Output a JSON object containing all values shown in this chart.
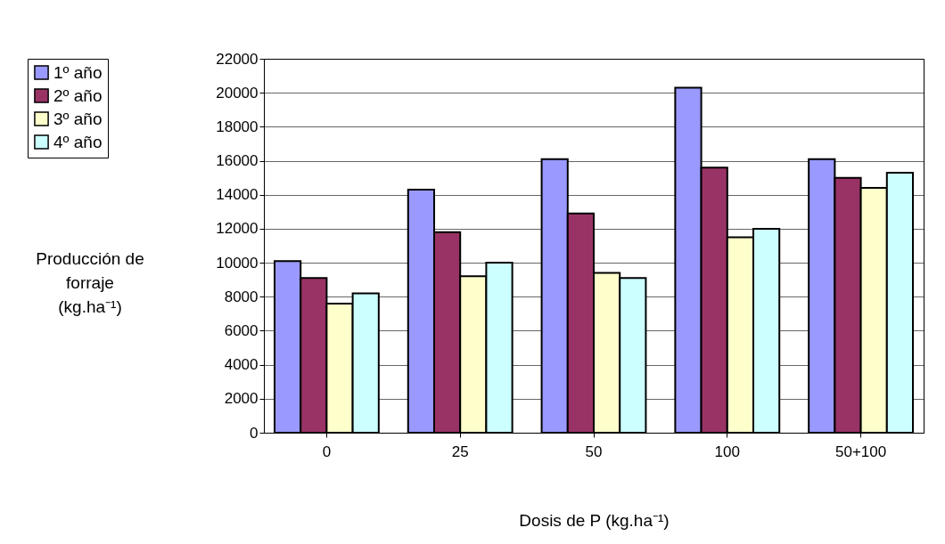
{
  "chart_data": {
    "type": "bar",
    "xlabel": "Dosis de P (kg.ha⁻¹)",
    "ylabel": "Producción de forraje (kg.ha⁻¹)",
    "categories": [
      "0",
      "25",
      "50",
      "100",
      "50+100"
    ],
    "series": [
      {
        "name": "1º año",
        "color": "#9999ff",
        "values": [
          10100,
          14300,
          16100,
          20300,
          16100
        ]
      },
      {
        "name": "2º año",
        "color": "#993366",
        "values": [
          9100,
          11800,
          12900,
          15600,
          15000
        ]
      },
      {
        "name": "3º año",
        "color": "#ffffcc",
        "values": [
          7600,
          9200,
          9400,
          11500,
          14400
        ]
      },
      {
        "name": "4º año",
        "color": "#ccffff",
        "values": [
          8200,
          10000,
          9100,
          12000,
          15300
        ]
      }
    ],
    "ylim": [
      0,
      22000
    ],
    "yticks": [
      0,
      2000,
      4000,
      6000,
      8000,
      10000,
      12000,
      14000,
      16000,
      18000,
      20000,
      22000
    ],
    "grid": "y",
    "legend": "top left"
  }
}
